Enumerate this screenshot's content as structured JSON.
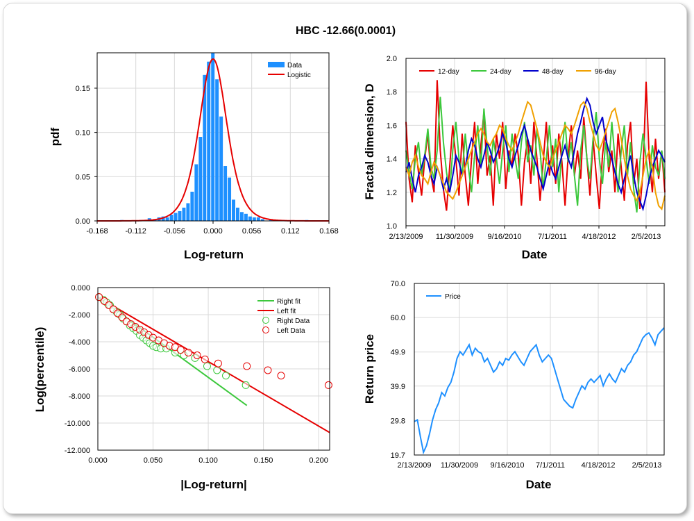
{
  "title": "HBC -12.66(0.0001)",
  "colors": {
    "data_bar": "#1e90ff",
    "logistic": "#e60000",
    "d12": "#e60000",
    "d24": "#3cc83c",
    "d48": "#0000cc",
    "d96": "#f0a000",
    "price": "#1e90ff",
    "right_fit": "#3cc83c",
    "left_fit": "#e60000"
  },
  "chart_data": [
    {
      "id": "pdf",
      "type": "bar",
      "xlabel": "Log-return",
      "ylabel": "pdf",
      "xlim": [
        -0.168,
        0.168
      ],
      "ylim": [
        0,
        0.19
      ],
      "xticks": [
        "-0.168",
        "-0.112",
        "-0.056",
        "0.000",
        "0.056",
        "0.112",
        "0.168"
      ],
      "yticks": [
        "0.00",
        "0.05",
        "0.10",
        "0.15"
      ],
      "legend": [
        "Data",
        "Logistic"
      ],
      "bar_width": 0.0056,
      "bars": [
        [
          -0.132,
          0.001
        ],
        [
          -0.104,
          0.001
        ],
        [
          -0.092,
          0.003
        ],
        [
          -0.084,
          0.002
        ],
        [
          -0.078,
          0.004
        ],
        [
          -0.072,
          0.005
        ],
        [
          -0.066,
          0.004
        ],
        [
          -0.06,
          0.007
        ],
        [
          -0.054,
          0.009
        ],
        [
          -0.048,
          0.011
        ],
        [
          -0.042,
          0.015
        ],
        [
          -0.036,
          0.02
        ],
        [
          -0.03,
          0.033
        ],
        [
          -0.024,
          0.064
        ],
        [
          -0.018,
          0.095
        ],
        [
          -0.012,
          0.165
        ],
        [
          -0.006,
          0.18
        ],
        [
          0.0,
          0.19
        ],
        [
          0.006,
          0.16
        ],
        [
          0.012,
          0.118
        ],
        [
          0.018,
          0.062
        ],
        [
          0.024,
          0.049
        ],
        [
          0.03,
          0.024
        ],
        [
          0.036,
          0.015
        ],
        [
          0.042,
          0.01
        ],
        [
          0.048,
          0.008
        ],
        [
          0.054,
          0.005
        ],
        [
          0.06,
          0.004
        ],
        [
          0.066,
          0.004
        ],
        [
          0.072,
          0.002
        ],
        [
          0.084,
          0.002
        ],
        [
          0.098,
          0.001
        ],
        [
          0.136,
          0.001
        ]
      ],
      "logistic_peak": 0.183,
      "logistic_scale": 0.0135
    },
    {
      "id": "fractal",
      "type": "line",
      "xlabel": "Date",
      "ylabel": "Fractal dimension, D",
      "ylim": [
        1.0,
        2.0
      ],
      "yticks": [
        "1.0",
        "1.2",
        "1.4",
        "1.6",
        "1.8",
        "2.0"
      ],
      "xticks": [
        "2/13/2009",
        "11/30/2009",
        "9/16/2010",
        "7/1/2011",
        "4/18/2012",
        "2/5/2013"
      ],
      "series": [
        {
          "name": "12-day",
          "color_key": "d12",
          "values": [
            1.62,
            1.28,
            1.14,
            1.48,
            1.32,
            1.18,
            1.4,
            1.55,
            1.3,
            1.2,
            1.87,
            1.45,
            1.22,
            1.09,
            1.35,
            1.6,
            1.4,
            1.18,
            1.55,
            1.3,
            1.12,
            1.4,
            1.62,
            1.25,
            1.48,
            1.68,
            1.3,
            1.42,
            1.12,
            1.55,
            1.4,
            1.62,
            1.22,
            1.45,
            1.35,
            1.55,
            1.42,
            1.12,
            1.38,
            1.52,
            1.25,
            1.62,
            1.4,
            1.15,
            1.38,
            1.62,
            1.3,
            1.48,
            1.25,
            1.55,
            1.38,
            1.12,
            1.42,
            1.6,
            1.3,
            1.45,
            1.28,
            1.65,
            1.4,
            1.18,
            1.52,
            1.3,
            1.1,
            1.42,
            1.58,
            1.32,
            1.45,
            1.2,
            1.55,
            1.35,
            1.15,
            1.48,
            1.62,
            1.25,
            1.4,
            1.1,
            1.32,
            1.86,
            1.4,
            1.2,
            1.52,
            1.28,
            1.45,
            1.2
          ]
        },
        {
          "name": "24-day",
          "color_key": "d24",
          "values": [
            1.45,
            1.32,
            1.22,
            1.4,
            1.5,
            1.3,
            1.42,
            1.58,
            1.35,
            1.28,
            1.45,
            1.77,
            1.5,
            1.32,
            1.2,
            1.45,
            1.62,
            1.4,
            1.3,
            1.55,
            1.35,
            1.2,
            1.42,
            1.6,
            1.35,
            1.7,
            1.48,
            1.3,
            1.52,
            1.4,
            1.25,
            1.45,
            1.6,
            1.32,
            1.55,
            1.4,
            1.28,
            1.5,
            1.62,
            1.38,
            1.48,
            1.3,
            1.58,
            1.45,
            1.22,
            1.4,
            1.6,
            1.35,
            1.52,
            1.2,
            1.45,
            1.62,
            1.38,
            1.5,
            1.3,
            1.12,
            1.45,
            1.6,
            1.4,
            1.28,
            1.52,
            1.68,
            1.4,
            1.25,
            1.5,
            1.35,
            1.62,
            1.4,
            1.2,
            1.45,
            1.6,
            1.3,
            1.5,
            1.22,
            1.08,
            1.38,
            1.55,
            1.4,
            1.25,
            1.48,
            1.35,
            1.3,
            1.45,
            1.28
          ]
        },
        {
          "name": "48-day",
          "color_key": "d48",
          "values": [
            1.32,
            1.38,
            1.28,
            1.2,
            1.3,
            1.35,
            1.42,
            1.38,
            1.3,
            1.25,
            1.35,
            1.3,
            1.22,
            1.28,
            1.2,
            1.3,
            1.42,
            1.38,
            1.3,
            1.35,
            1.45,
            1.52,
            1.48,
            1.4,
            1.35,
            1.42,
            1.5,
            1.45,
            1.38,
            1.42,
            1.48,
            1.55,
            1.5,
            1.4,
            1.35,
            1.42,
            1.48,
            1.55,
            1.6,
            1.52,
            1.45,
            1.4,
            1.35,
            1.28,
            1.22,
            1.3,
            1.38,
            1.32,
            1.28,
            1.35,
            1.42,
            1.48,
            1.4,
            1.35,
            1.45,
            1.55,
            1.62,
            1.7,
            1.76,
            1.72,
            1.62,
            1.55,
            1.6,
            1.65,
            1.52,
            1.45,
            1.4,
            1.32,
            1.25,
            1.2,
            1.28,
            1.35,
            1.42,
            1.3,
            1.2,
            1.15,
            1.1,
            1.18,
            1.28,
            1.35,
            1.4,
            1.45,
            1.42,
            1.38
          ]
        },
        {
          "name": "96-day",
          "color_key": "d96",
          "values": [
            1.35,
            1.3,
            1.38,
            1.42,
            1.35,
            1.3,
            1.28,
            1.25,
            1.32,
            1.38,
            1.35,
            1.3,
            1.25,
            1.2,
            1.18,
            1.16,
            1.2,
            1.25,
            1.3,
            1.35,
            1.4,
            1.45,
            1.5,
            1.55,
            1.58,
            1.55,
            1.5,
            1.48,
            1.52,
            1.55,
            1.6,
            1.58,
            1.52,
            1.48,
            1.45,
            1.5,
            1.55,
            1.62,
            1.68,
            1.74,
            1.72,
            1.65,
            1.58,
            1.5,
            1.42,
            1.38,
            1.35,
            1.4,
            1.45,
            1.5,
            1.55,
            1.6,
            1.58,
            1.55,
            1.6,
            1.66,
            1.72,
            1.74,
            1.7,
            1.62,
            1.55,
            1.48,
            1.45,
            1.5,
            1.56,
            1.62,
            1.68,
            1.7,
            1.62,
            1.52,
            1.4,
            1.3,
            1.22,
            1.18,
            1.15,
            1.2,
            1.3,
            1.4,
            1.45,
            1.35,
            1.2,
            1.12,
            1.1,
            1.18
          ]
        }
      ],
      "legend": [
        "12-day",
        "24-day",
        "48-day",
        "96-day"
      ]
    },
    {
      "id": "tail",
      "type": "scatter",
      "xlabel": "|Log-return|",
      "ylabel": "Log(percentile)",
      "xlim": [
        0,
        0.21
      ],
      "ylim": [
        -12,
        0
      ],
      "xticks": [
        "0.000",
        "0.050",
        "0.100",
        "0.150",
        "0.200"
      ],
      "yticks": [
        "0.000",
        "-2.000",
        "-4.000",
        "-6.000",
        "-8.000",
        "-10.000",
        "-12.000"
      ],
      "legend": [
        "Right fit",
        "Left fit",
        "Right Data",
        "Left Data"
      ],
      "right_fit": [
        [
          0.0,
          -0.7
        ],
        [
          0.135,
          -8.7
        ]
      ],
      "left_fit": [
        [
          0.0,
          -0.7
        ],
        [
          0.21,
          -10.7
        ]
      ],
      "right_data": [
        [
          0.001,
          -0.7
        ],
        [
          0.005,
          -0.9
        ],
        [
          0.008,
          -1.1
        ],
        [
          0.011,
          -1.3
        ],
        [
          0.014,
          -1.6
        ],
        [
          0.017,
          -1.8
        ],
        [
          0.02,
          -2.0
        ],
        [
          0.023,
          -2.3
        ],
        [
          0.026,
          -2.5
        ],
        [
          0.029,
          -2.8
        ],
        [
          0.032,
          -3.0
        ],
        [
          0.035,
          -3.2
        ],
        [
          0.038,
          -3.5
        ],
        [
          0.041,
          -3.7
        ],
        [
          0.044,
          -3.9
        ],
        [
          0.047,
          -4.1
        ],
        [
          0.05,
          -4.3
        ],
        [
          0.053,
          -4.4
        ],
        [
          0.057,
          -4.5
        ],
        [
          0.062,
          -4.5
        ],
        [
          0.07,
          -4.8
        ],
        [
          0.078,
          -5.0
        ],
        [
          0.088,
          -5.2
        ],
        [
          0.099,
          -5.8
        ],
        [
          0.108,
          -6.1
        ],
        [
          0.116,
          -6.5
        ],
        [
          0.134,
          -7.2
        ]
      ],
      "left_data": [
        [
          0.001,
          -0.7
        ],
        [
          0.006,
          -1.0
        ],
        [
          0.01,
          -1.3
        ],
        [
          0.014,
          -1.6
        ],
        [
          0.018,
          -1.9
        ],
        [
          0.022,
          -2.2
        ],
        [
          0.026,
          -2.5
        ],
        [
          0.03,
          -2.7
        ],
        [
          0.034,
          -2.9
        ],
        [
          0.038,
          -3.1
        ],
        [
          0.042,
          -3.3
        ],
        [
          0.046,
          -3.5
        ],
        [
          0.05,
          -3.7
        ],
        [
          0.055,
          -3.9
        ],
        [
          0.06,
          -4.1
        ],
        [
          0.065,
          -4.3
        ],
        [
          0.07,
          -4.4
        ],
        [
          0.075,
          -4.6
        ],
        [
          0.082,
          -4.8
        ],
        [
          0.09,
          -5.0
        ],
        [
          0.097,
          -5.3
        ],
        [
          0.109,
          -5.6
        ],
        [
          0.135,
          -5.8
        ],
        [
          0.154,
          -6.1
        ],
        [
          0.166,
          -6.5
        ],
        [
          0.209,
          -7.2
        ]
      ]
    },
    {
      "id": "price",
      "type": "line",
      "xlabel": "Date",
      "ylabel": "Return price",
      "ylim": [
        19.7,
        70.0
      ],
      "yticks": [
        "19.7",
        "29.8",
        "39.9",
        "49.9",
        "60.0",
        "70.0"
      ],
      "xticks": [
        "2/13/2009",
        "11/30/2009",
        "9/16/2010",
        "7/1/2011",
        "4/18/2012",
        "2/5/2013"
      ],
      "legend": [
        "Price"
      ],
      "values": [
        29.5,
        30.0,
        25.0,
        20.5,
        22.5,
        26.0,
        30.0,
        33.0,
        35.0,
        38.0,
        37.0,
        39.5,
        41.0,
        44.0,
        48.0,
        50.0,
        49.0,
        50.5,
        52.0,
        49.0,
        51.0,
        50.0,
        49.5,
        47.0,
        48.0,
        46.0,
        44.0,
        45.0,
        47.0,
        46.0,
        48.0,
        47.5,
        49.0,
        50.0,
        48.5,
        47.0,
        46.0,
        48.0,
        50.0,
        51.0,
        52.0,
        49.0,
        47.0,
        48.0,
        49.0,
        48.0,
        45.0,
        42.0,
        39.0,
        36.0,
        35.0,
        34.0,
        33.5,
        36.0,
        38.0,
        40.0,
        39.0,
        41.0,
        42.0,
        41.0,
        42.0,
        43.0,
        40.0,
        42.0,
        43.5,
        42.0,
        41.0,
        43.0,
        45.0,
        44.0,
        46.0,
        47.0,
        49.0,
        50.0,
        52.0,
        54.0,
        55.0,
        55.5,
        54.0,
        52.0,
        55.0,
        56.0,
        57.0
      ]
    }
  ]
}
